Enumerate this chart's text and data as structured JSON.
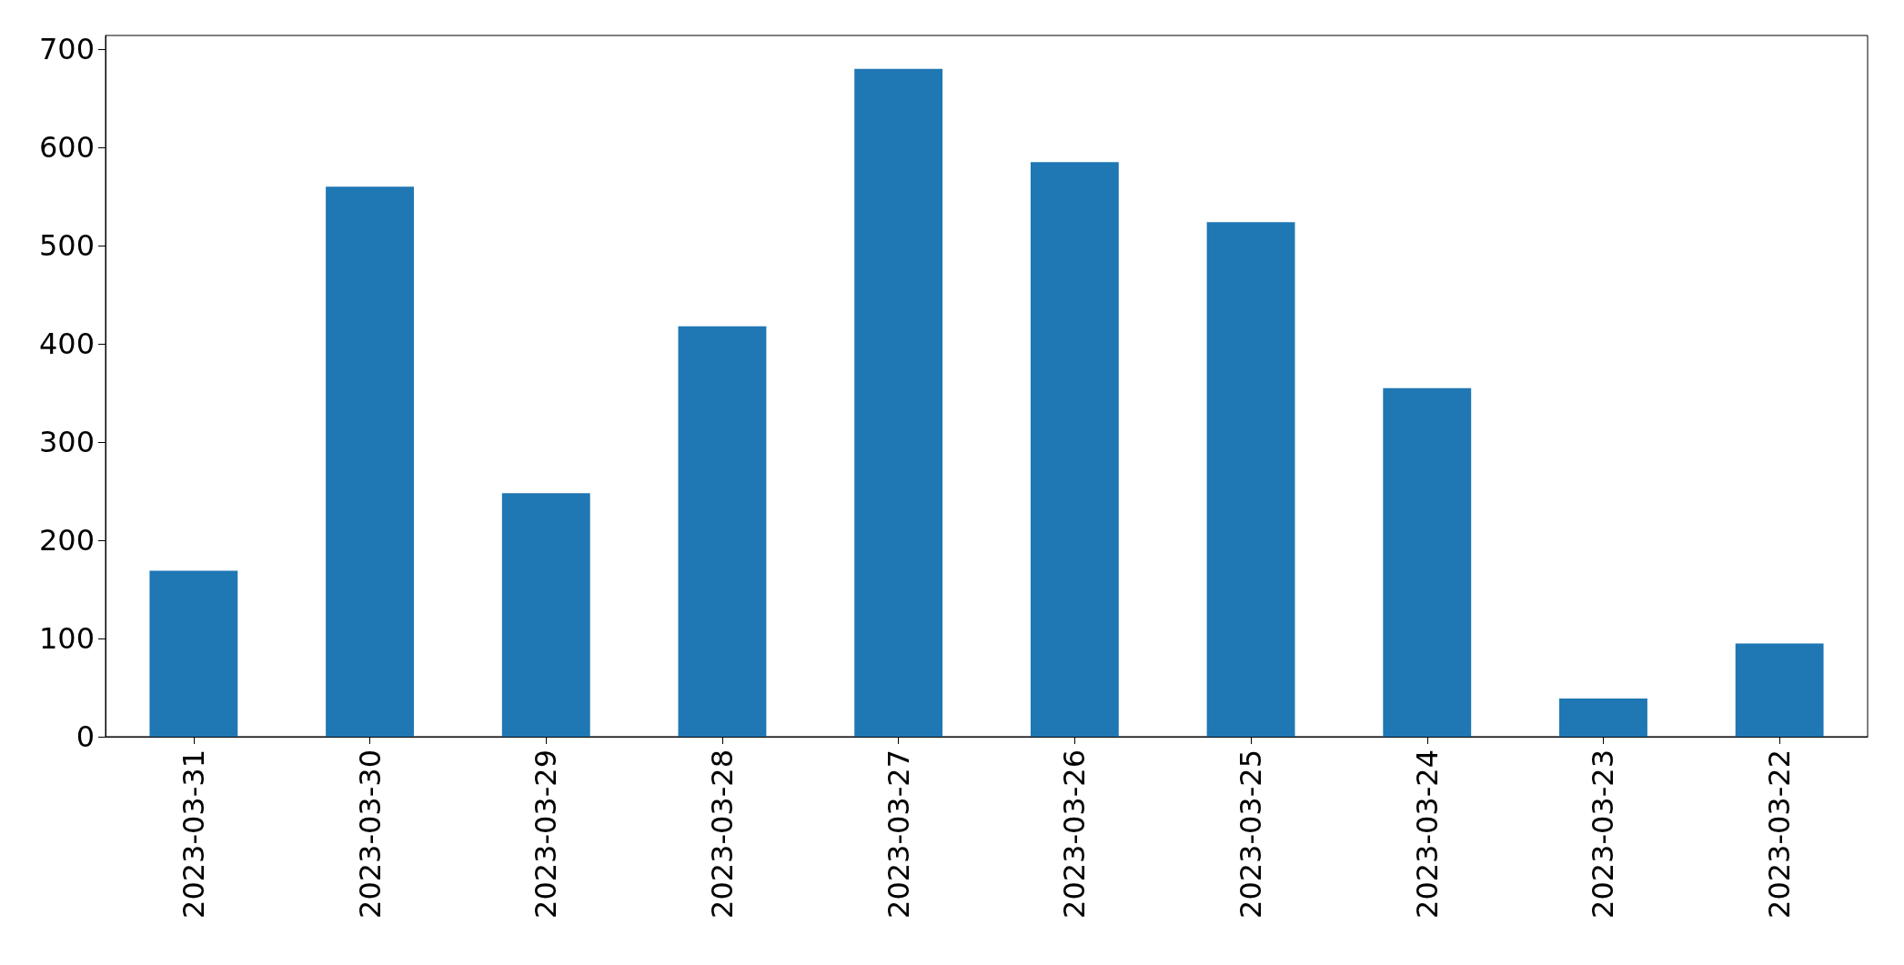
{
  "chart_data": {
    "type": "bar",
    "categories": [
      "2023-03-31",
      "2023-03-30",
      "2023-03-29",
      "2023-03-28",
      "2023-03-27",
      "2023-03-26",
      "2023-03-25",
      "2023-03-24",
      "2023-03-23",
      "2023-03-22"
    ],
    "values": [
      169,
      560,
      248,
      418,
      680,
      585,
      524,
      355,
      39,
      95
    ],
    "color": "#1f77b4",
    "ylim": [
      0,
      714
    ],
    "yticks": [
      0,
      100,
      200,
      300,
      400,
      500,
      600,
      700
    ],
    "grid": false
  }
}
